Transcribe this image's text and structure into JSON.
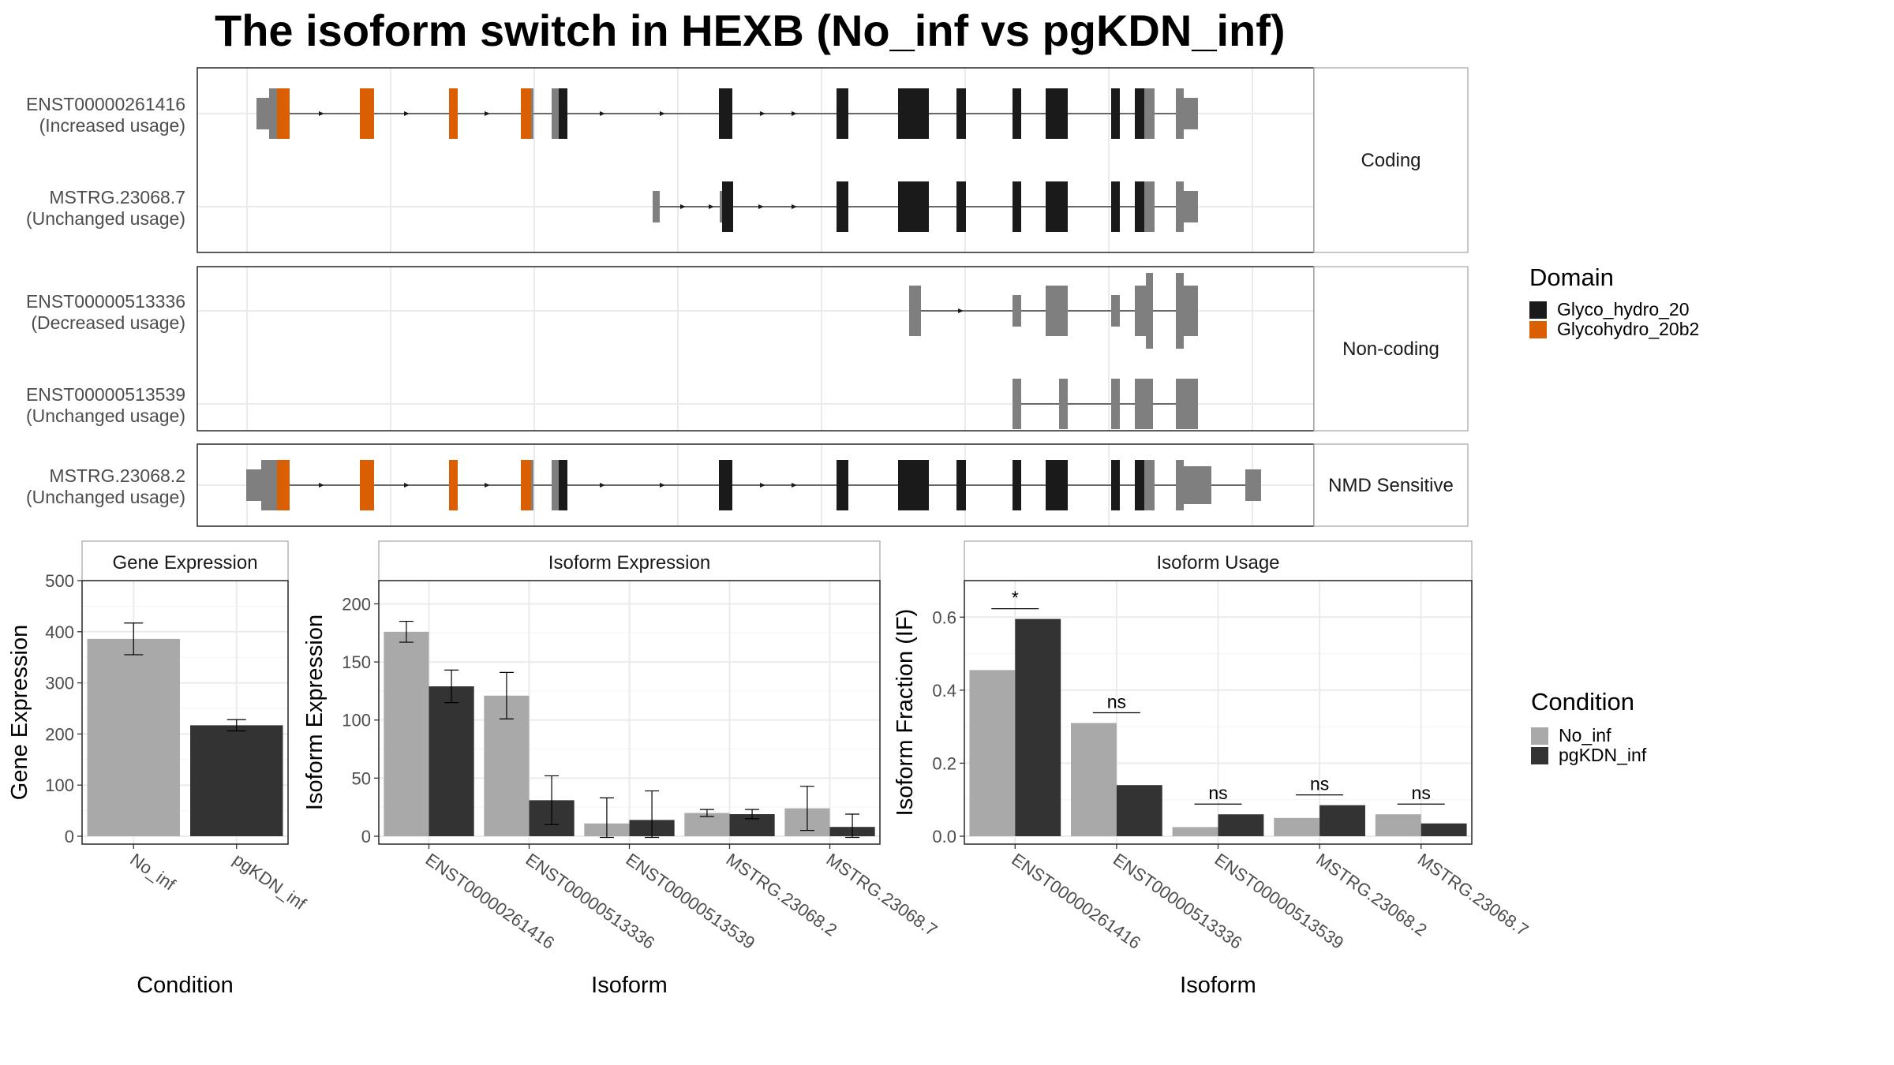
{
  "title": "The isoform switch in HEXB (No_inf vs pgKDN_inf)",
  "colors": {
    "no_inf": "#a9a9a9",
    "pgkdn_inf": "#333333",
    "Glyco_hydro_20": "#1a1a1a",
    "Glycohydro_20b2": "#d95f02",
    "noncoding_exon": "#7f7f7f"
  },
  "structure": {
    "panels": [
      {
        "strip": "Coding",
        "tracks": [
          {
            "id": "ENST00000261416",
            "label": "ENST00000261416",
            "sublabel": "(Increased usage)"
          },
          {
            "id": "MSTRG.23068.7",
            "label": "MSTRG.23068.7",
            "sublabel": "(Unchanged usage)"
          }
        ]
      },
      {
        "strip": "Non-coding",
        "tracks": [
          {
            "id": "ENST00000513336",
            "label": "ENST00000513336",
            "sublabel": "(Decreased usage)"
          },
          {
            "id": "ENST00000513539",
            "label": "ENST00000513539",
            "sublabel": "(Unchanged usage)"
          }
        ]
      },
      {
        "strip": "NMD Sensitive",
        "tracks": [
          {
            "id": "MSTRG.23068.2",
            "label": "MSTRG.23068.2",
            "sublabel": "(Unchanged usage)"
          }
        ]
      }
    ],
    "domain_legend": {
      "title": "Domain",
      "items": [
        {
          "name": "Glyco_hydro_20",
          "color": "#1a1a1a"
        },
        {
          "name": "Glycohydro_20b2",
          "color": "#d95f02"
        }
      ]
    }
  },
  "chart_data": [
    {
      "type": "bar",
      "strip": "Gene Expression",
      "xlabel": "Condition",
      "ylabel": "Gene Expression",
      "categories": [
        "No_inf",
        "pgKDN_inf"
      ],
      "values": [
        386,
        217
      ],
      "error": [
        31,
        11
      ],
      "ylim": [
        0,
        500
      ],
      "yticks": [
        0,
        100,
        200,
        300,
        400,
        500
      ]
    },
    {
      "type": "bar",
      "strip": "Isoform Expression",
      "xlabel": "Isoform",
      "ylabel": "Isoform Expression",
      "categories": [
        "ENST00000261416",
        "ENST00000513336",
        "ENST00000513539",
        "MSTRG.23068.2",
        "MSTRG.23068.7"
      ],
      "series": [
        {
          "name": "No_inf",
          "values": [
            176,
            121,
            11,
            20,
            24
          ],
          "error": [
            9,
            20,
            22,
            3,
            19
          ]
        },
        {
          "name": "pgKDN_inf",
          "values": [
            129,
            31,
            14,
            19,
            8
          ],
          "error": [
            14,
            21,
            25,
            4,
            11
          ]
        }
      ],
      "ylim": [
        0,
        220
      ],
      "yticks": [
        0,
        50,
        100,
        150,
        200
      ]
    },
    {
      "type": "bar",
      "strip": "Isoform Usage",
      "xlabel": "Isoform",
      "ylabel": "Isoform Fraction (IF)",
      "categories": [
        "ENST00000261416",
        "ENST00000513336",
        "ENST00000513539",
        "MSTRG.23068.2",
        "MSTRG.23068.7"
      ],
      "series": [
        {
          "name": "No_inf",
          "values": [
            0.455,
            0.31,
            0.025,
            0.05,
            0.06
          ]
        },
        {
          "name": "pgKDN_inf",
          "values": [
            0.595,
            0.14,
            0.06,
            0.085,
            0.035
          ]
        }
      ],
      "significance": [
        "*",
        "ns",
        "ns",
        "ns",
        "ns"
      ],
      "ylim": [
        0,
        0.7
      ],
      "yticks": [
        0.0,
        0.2,
        0.4,
        0.6
      ],
      "legend": {
        "title": "Condition",
        "items": [
          {
            "name": "No_inf",
            "color": "#a9a9a9"
          },
          {
            "name": "pgKDN_inf",
            "color": "#333333"
          }
        ]
      }
    }
  ]
}
